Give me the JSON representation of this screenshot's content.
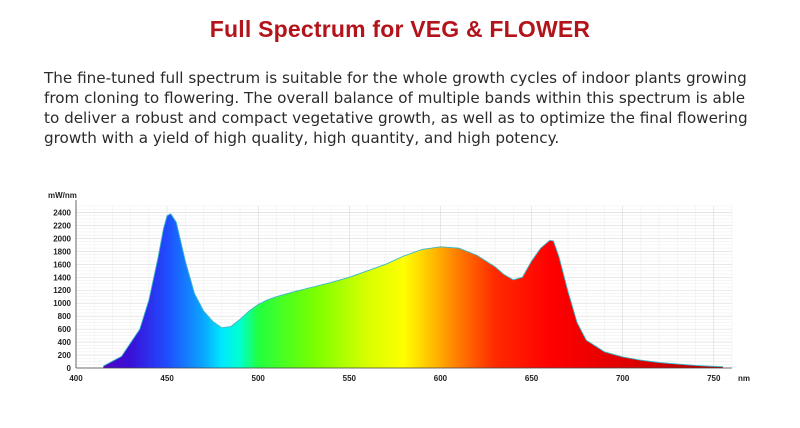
{
  "heading": "Full Spectrum for VEG & FLOWER",
  "description": "The fine-tuned full spectrum is suitable for the whole growth cycles of indoor plants growing from cloning to flowering. The overall balance of multiple bands within this spectrum is able to deliver a robust and compact vegetative growth, as well as to optimize the final flowering growth with a yield of high quality, high quantity, and high potency.",
  "chart_data": {
    "type": "area",
    "title": "",
    "ylabel": "mW/nm",
    "xlabel": "nm",
    "xlim": [
      400,
      760
    ],
    "ylim": [
      0,
      2500
    ],
    "grid": true,
    "fill": "visible-spectrum gradient by wavelength",
    "x_ticks": [
      400,
      450,
      500,
      550,
      600,
      650,
      700,
      750
    ],
    "y_ticks": [
      0,
      200,
      400,
      600,
      800,
      1000,
      1200,
      1400,
      1600,
      1800,
      2000,
      2200,
      2400
    ],
    "series": [
      {
        "x": [
          415,
          425,
          435,
          440,
          445,
          448,
          450,
          452,
          455,
          460,
          465,
          470,
          475,
          480,
          485,
          490,
          495,
          500,
          505,
          510,
          520,
          530,
          540,
          550,
          560,
          570,
          580,
          590,
          600,
          610,
          620,
          630,
          635,
          640,
          645,
          650,
          655,
          660,
          662,
          665,
          670,
          675,
          680,
          690,
          700,
          710,
          720,
          730,
          740,
          750,
          755
        ],
        "y": [
          30,
          180,
          600,
          1050,
          1700,
          2150,
          2350,
          2380,
          2250,
          1650,
          1150,
          880,
          720,
          620,
          640,
          750,
          880,
          980,
          1050,
          1100,
          1180,
          1250,
          1320,
          1400,
          1500,
          1600,
          1730,
          1830,
          1870,
          1850,
          1740,
          1560,
          1440,
          1360,
          1400,
          1650,
          1850,
          1970,
          1960,
          1720,
          1180,
          700,
          430,
          250,
          170,
          120,
          85,
          60,
          40,
          25,
          20
        ]
      }
    ]
  }
}
